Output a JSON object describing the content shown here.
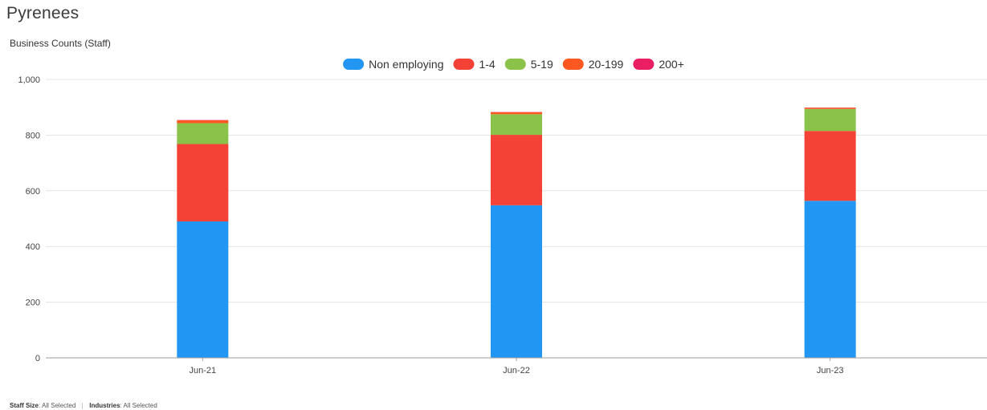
{
  "page": {
    "title": "Pyrenees",
    "subtitle": "Business Counts (Staff)"
  },
  "filters": [
    {
      "name": "Staff Size",
      "value": "All Selected"
    },
    {
      "name": "Industries",
      "value": "All Selected"
    }
  ],
  "chart_data": {
    "type": "bar",
    "stacked": true,
    "title": "",
    "xlabel": "",
    "ylabel": "",
    "ylim": [
      0,
      1000
    ],
    "yticks": [
      0,
      200,
      400,
      600,
      800,
      1000
    ],
    "ytick_labels": [
      "0",
      "200",
      "400",
      "600",
      "800",
      "1,000"
    ],
    "grid": true,
    "legend_position": "top-center",
    "categories": [
      "Jun-21",
      "Jun-22",
      "Jun-23"
    ],
    "series": [
      {
        "name": "Non employing",
        "color": "#2196f3",
        "values": [
          490,
          548,
          564
        ]
      },
      {
        "name": "1-4",
        "color": "#f44336",
        "values": [
          278,
          253,
          251
        ]
      },
      {
        "name": "5-19",
        "color": "#8bc34a",
        "values": [
          75,
          74,
          79
        ]
      },
      {
        "name": "20-199",
        "color": "#ff5722",
        "values": [
          10,
          7,
          4
        ]
      },
      {
        "name": "200+",
        "color": "#e91e63",
        "values": [
          1,
          1,
          1
        ]
      }
    ]
  }
}
